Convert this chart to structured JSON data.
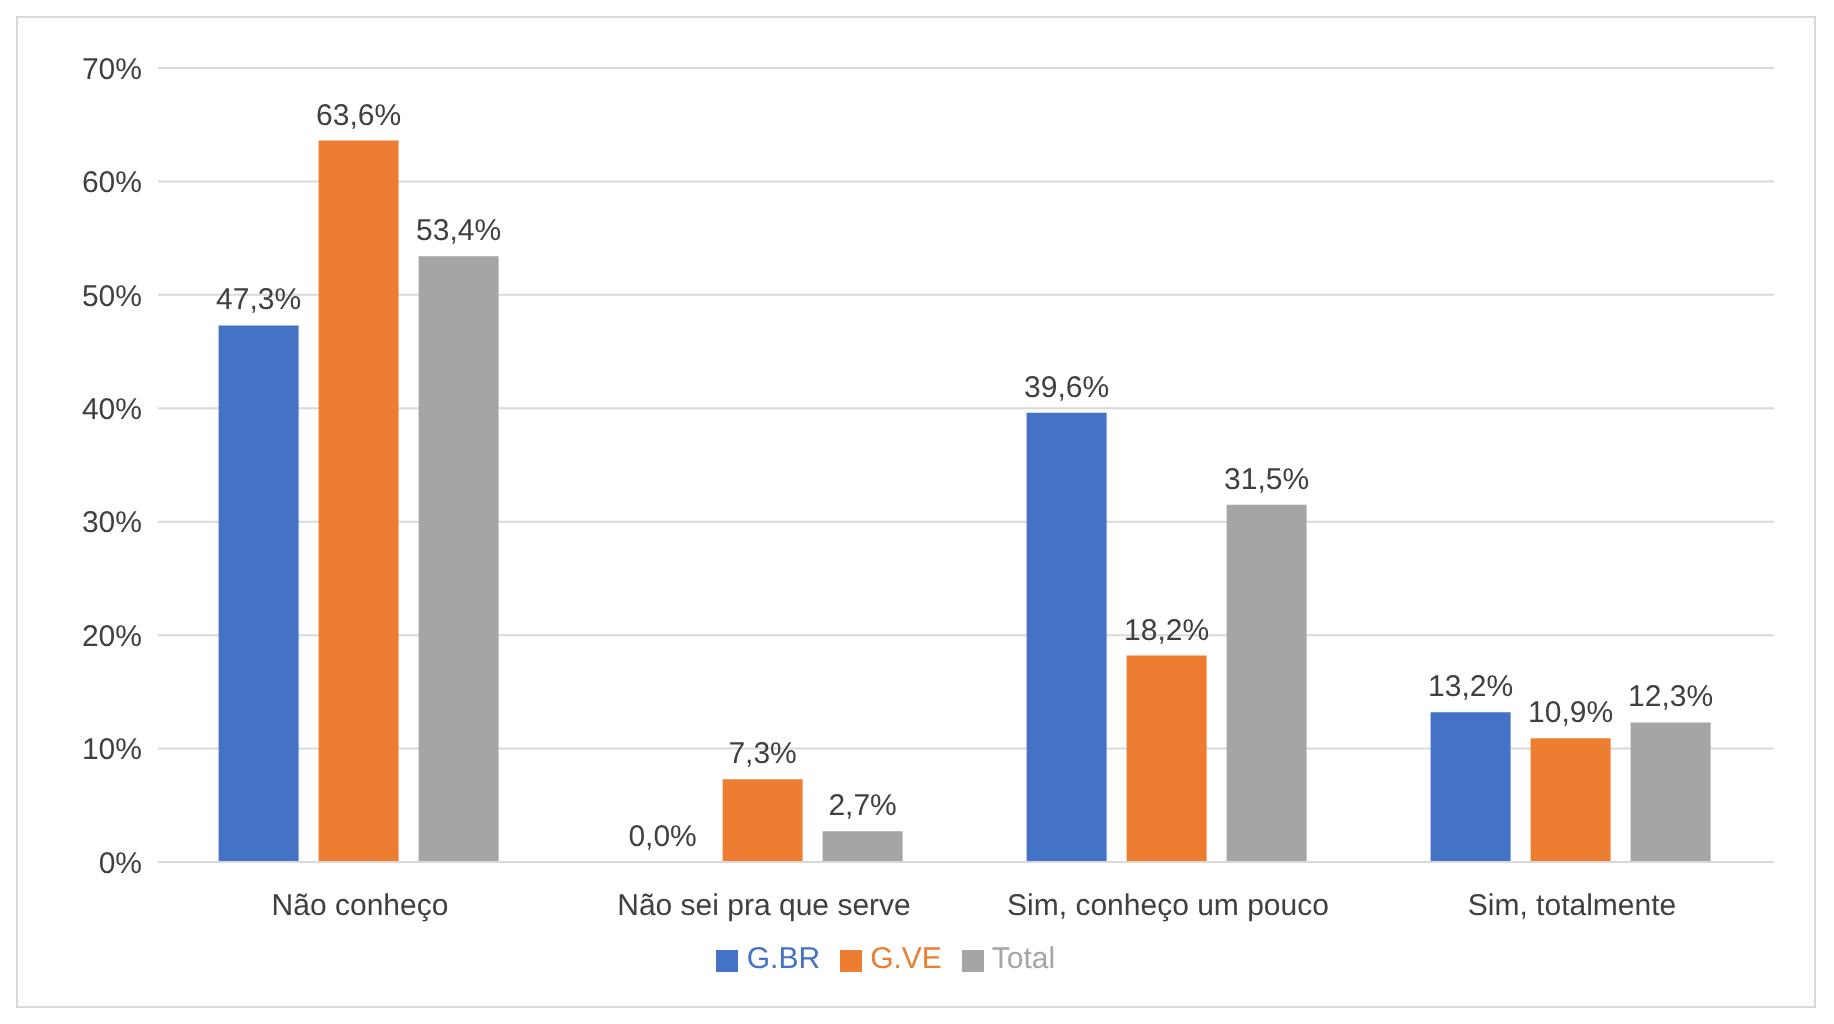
{
  "chart_data": {
    "type": "bar",
    "categories": [
      "Não conheço",
      "Não sei pra que serve",
      "Sim, conheço um pouco",
      "Sim, totalmente"
    ],
    "series": [
      {
        "name": "G.BR",
        "color": "#4472c4",
        "values": [
          47.3,
          0,
          39.6,
          13.2
        ],
        "value_labels": [
          "47,3%",
          "0,0%",
          "39,6%",
          "13,2%"
        ]
      },
      {
        "name": "G.VE",
        "color": "#ed7d31",
        "values": [
          63.6,
          7.3,
          18.2,
          10.9
        ],
        "value_labels": [
          "63,6%",
          "7,3%",
          "18,2%",
          "10,9%"
        ]
      },
      {
        "name": "Total",
        "color": "#a5a5a5",
        "values": [
          53.4,
          2.7,
          31.5,
          12.3
        ],
        "value_labels": [
          "53,4%",
          "2,7%",
          "31,5%",
          "12,3%"
        ]
      }
    ],
    "ylim": [
      0,
      70
    ],
    "yticks": [
      {
        "value": 0,
        "label": "0%"
      },
      {
        "value": 10,
        "label": "10%"
      },
      {
        "value": 20,
        "label": "20%"
      },
      {
        "value": 30,
        "label": "30%"
      },
      {
        "value": 40,
        "label": "40%"
      },
      {
        "value": 50,
        "label": "50%"
      },
      {
        "value": 60,
        "label": "60%"
      },
      {
        "value": 70,
        "label": "70%"
      }
    ],
    "grid": "y",
    "legend": "bottom"
  }
}
